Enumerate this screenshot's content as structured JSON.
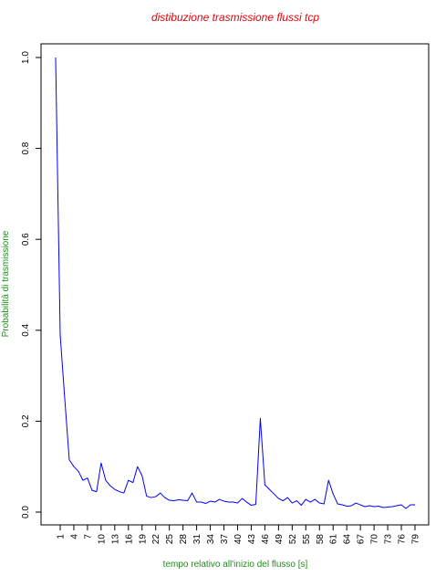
{
  "colors": {
    "title": "#e8000a",
    "axis_label": "#1f8c1f",
    "series": "#0000ff",
    "axis": "#000000"
  },
  "chart_data": {
    "type": "line",
    "title": "distibuzione trasmissione flussi tcp",
    "xlabel": "tempo relativo all'inizio del flusso [s]",
    "ylabel": "Probabilità di trasmissione",
    "ylim": [
      0,
      1.0
    ],
    "yticks": [
      0.0,
      0.2,
      0.4,
      0.6,
      0.8,
      1.0
    ],
    "ytick_labels": [
      "0.0",
      "0.2",
      "0.4",
      "0.6",
      "0.8",
      "1.0"
    ],
    "xlim": [
      1,
      79
    ],
    "xticks": [
      1,
      4,
      7,
      10,
      13,
      16,
      19,
      22,
      25,
      28,
      31,
      34,
      37,
      40,
      43,
      46,
      49,
      52,
      55,
      58,
      61,
      64,
      67,
      70,
      73,
      76,
      79
    ],
    "xtick_labels": [
      "1",
      "4",
      "7",
      "10",
      "13",
      "16",
      "19",
      "22",
      "25",
      "28",
      "31",
      "34",
      "37",
      "40",
      "43",
      "46",
      "49",
      "52",
      "55",
      "58",
      "61",
      "64",
      "67",
      "70",
      "73",
      "76",
      "79"
    ],
    "grid": false,
    "legend": false,
    "x": [
      0,
      1,
      2,
      3,
      4,
      5,
      6,
      7,
      8,
      9,
      10,
      11,
      12,
      13,
      14,
      15,
      16,
      17,
      18,
      19,
      20,
      21,
      22,
      23,
      24,
      25,
      26,
      27,
      28,
      29,
      30,
      31,
      32,
      33,
      34,
      35,
      36,
      37,
      38,
      39,
      40,
      41,
      42,
      43,
      44,
      45,
      46,
      47,
      48,
      49,
      50,
      51,
      52,
      53,
      54,
      55,
      56,
      57,
      58,
      59,
      60,
      61,
      62,
      63,
      64,
      65,
      66,
      67,
      68,
      69,
      70,
      71,
      72,
      73,
      74,
      75,
      76,
      77,
      78,
      79
    ],
    "y": [
      1.0,
      0.39,
      0.25,
      0.115,
      0.1,
      0.09,
      0.07,
      0.075,
      0.048,
      0.045,
      0.108,
      0.07,
      0.058,
      0.05,
      0.045,
      0.042,
      0.07,
      0.065,
      0.1,
      0.08,
      0.035,
      0.032,
      0.034,
      0.042,
      0.032,
      0.026,
      0.025,
      0.027,
      0.026,
      0.025,
      0.042,
      0.022,
      0.022,
      0.019,
      0.024,
      0.022,
      0.028,
      0.024,
      0.022,
      0.022,
      0.02,
      0.03,
      0.022,
      0.015,
      0.017,
      0.206,
      0.06,
      0.05,
      0.04,
      0.03,
      0.025,
      0.032,
      0.02,
      0.025,
      0.015,
      0.028,
      0.022,
      0.028,
      0.02,
      0.018,
      0.07,
      0.04,
      0.018,
      0.016,
      0.013,
      0.014,
      0.02,
      0.016,
      0.012,
      0.014,
      0.012,
      0.013,
      0.01,
      0.011,
      0.012,
      0.014,
      0.016,
      0.008,
      0.016,
      0.016
    ]
  }
}
